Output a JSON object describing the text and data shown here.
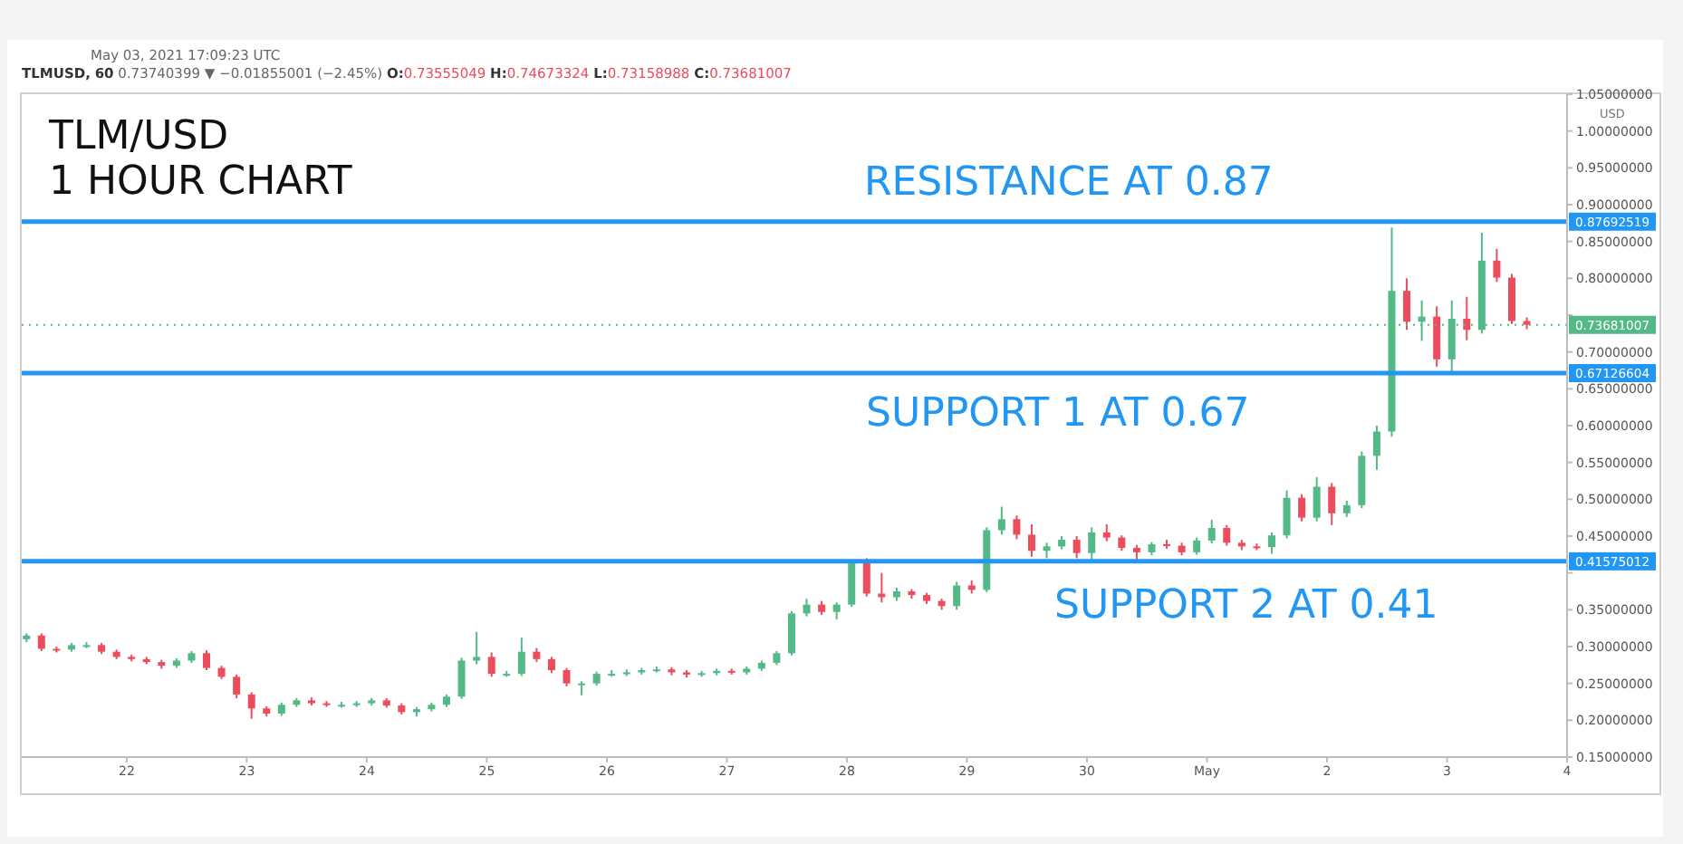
{
  "chart_data": {
    "type": "candlestick",
    "title": "TLM/USD",
    "subtitle": "1 HOUR CHART",
    "ylabel": "USD",
    "annotations": [
      "May 03, 2021 17:09:23 UTC",
      "TLMUSD, 60 0.73740399 ▼ −0.01855001 (−2.45%) O:0.73555049 H:0.74673324 L:0.73158988 C:0.73681007",
      "0.87692519",
      "0.67126604",
      "0.41575012",
      "0.73681007"
    ],
    "x": [
      "2021-04-21T04:00",
      "2021-04-21T07:00",
      "2021-04-21T10:00",
      "2021-04-21T13:00",
      "2021-04-21T16:00",
      "2021-04-21T19:00",
      "2021-04-21T22:00",
      "2021-04-22T01:00",
      "2021-04-22T04:00",
      "2021-04-22T07:00",
      "2021-04-22T10:00",
      "2021-04-22T13:00",
      "2021-04-22T16:00",
      "2021-04-22T19:00",
      "2021-04-22T22:00",
      "2021-04-23T01:00",
      "2021-04-23T04:00",
      "2021-04-23T07:00",
      "2021-04-23T10:00",
      "2021-04-23T13:00",
      "2021-04-23T16:00",
      "2021-04-23T19:00",
      "2021-04-23T22:00",
      "2021-04-24T01:00",
      "2021-04-24T04:00",
      "2021-04-24T07:00",
      "2021-04-24T10:00",
      "2021-04-24T13:00",
      "2021-04-24T16:00",
      "2021-04-24T19:00",
      "2021-04-24T22:00",
      "2021-04-25T01:00",
      "2021-04-25T04:00",
      "2021-04-25T07:00",
      "2021-04-25T10:00",
      "2021-04-25T13:00",
      "2021-04-25T16:00",
      "2021-04-25T19:00",
      "2021-04-25T22:00",
      "2021-04-26T01:00",
      "2021-04-26T04:00",
      "2021-04-26T07:00",
      "2021-04-26T10:00",
      "2021-04-26T13:00",
      "2021-04-26T16:00",
      "2021-04-26T19:00",
      "2021-04-26T22:00",
      "2021-04-27T01:00",
      "2021-04-27T04:00",
      "2021-04-27T07:00",
      "2021-04-27T10:00",
      "2021-04-27T13:00",
      "2021-04-27T16:00",
      "2021-04-27T19:00",
      "2021-04-27T22:00",
      "2021-04-28T01:00",
      "2021-04-28T04:00",
      "2021-04-28T07:00",
      "2021-04-28T10:00",
      "2021-04-28T13:00",
      "2021-04-28T16:00",
      "2021-04-28T19:00",
      "2021-04-28T22:00",
      "2021-04-29T01:00",
      "2021-04-29T04:00",
      "2021-04-29T07:00",
      "2021-04-29T10:00",
      "2021-04-29T13:00",
      "2021-04-29T16:00",
      "2021-04-29T19:00",
      "2021-04-29T22:00",
      "2021-04-30T01:00",
      "2021-04-30T04:00",
      "2021-04-30T07:00",
      "2021-04-30T10:00",
      "2021-04-30T13:00",
      "2021-04-30T16:00",
      "2021-04-30T19:00",
      "2021-04-30T22:00",
      "2021-05-01T01:00",
      "2021-05-01T04:00",
      "2021-05-01T07:00",
      "2021-05-01T10:00",
      "2021-05-01T13:00",
      "2021-05-01T16:00",
      "2021-05-01T19:00",
      "2021-05-01T22:00",
      "2021-05-02T01:00",
      "2021-05-02T04:00",
      "2021-05-02T07:00",
      "2021-05-02T10:00",
      "2021-05-02T13:00",
      "2021-05-02T16:00",
      "2021-05-02T19:00",
      "2021-05-02T22:00",
      "2021-05-03T01:00",
      "2021-05-03T04:00",
      "2021-05-03T07:00",
      "2021-05-03T10:00",
      "2021-05-03T13:00",
      "2021-05-03T16:00"
    ],
    "ohlc": [
      [
        0.31,
        0.318,
        0.306,
        0.315
      ],
      [
        0.315,
        0.318,
        0.294,
        0.297
      ],
      [
        0.297,
        0.3,
        0.292,
        0.296
      ],
      [
        0.296,
        0.305,
        0.293,
        0.302
      ],
      [
        0.302,
        0.306,
        0.298,
        0.302
      ],
      [
        0.302,
        0.305,
        0.29,
        0.293
      ],
      [
        0.293,
        0.296,
        0.283,
        0.286
      ],
      [
        0.286,
        0.289,
        0.28,
        0.283
      ],
      [
        0.283,
        0.286,
        0.276,
        0.279
      ],
      [
        0.279,
        0.282,
        0.27,
        0.274
      ],
      [
        0.274,
        0.284,
        0.271,
        0.281
      ],
      [
        0.281,
        0.294,
        0.278,
        0.291
      ],
      [
        0.291,
        0.295,
        0.268,
        0.271
      ],
      [
        0.271,
        0.274,
        0.256,
        0.259
      ],
      [
        0.259,
        0.262,
        0.23,
        0.235
      ],
      [
        0.235,
        0.238,
        0.202,
        0.216
      ],
      [
        0.216,
        0.219,
        0.205,
        0.209
      ],
      [
        0.209,
        0.224,
        0.206,
        0.221
      ],
      [
        0.221,
        0.23,
        0.218,
        0.227
      ],
      [
        0.227,
        0.231,
        0.22,
        0.223
      ],
      [
        0.223,
        0.226,
        0.218,
        0.221
      ],
      [
        0.221,
        0.225,
        0.217,
        0.221
      ],
      [
        0.221,
        0.226,
        0.218,
        0.223
      ],
      [
        0.223,
        0.23,
        0.22,
        0.227
      ],
      [
        0.227,
        0.23,
        0.217,
        0.22
      ],
      [
        0.22,
        0.223,
        0.208,
        0.211
      ],
      [
        0.211,
        0.218,
        0.205,
        0.215
      ],
      [
        0.215,
        0.224,
        0.212,
        0.221
      ],
      [
        0.221,
        0.235,
        0.218,
        0.232
      ],
      [
        0.232,
        0.285,
        0.229,
        0.281
      ],
      [
        0.281,
        0.32,
        0.276,
        0.286
      ],
      [
        0.286,
        0.292,
        0.259,
        0.263
      ],
      [
        0.263,
        0.267,
        0.259,
        0.263
      ],
      [
        0.263,
        0.312,
        0.26,
        0.293
      ],
      [
        0.293,
        0.298,
        0.279,
        0.283
      ],
      [
        0.283,
        0.286,
        0.264,
        0.268
      ],
      [
        0.268,
        0.271,
        0.246,
        0.25
      ],
      [
        0.25,
        0.253,
        0.234,
        0.25
      ],
      [
        0.25,
        0.266,
        0.247,
        0.263
      ],
      [
        0.263,
        0.268,
        0.259,
        0.263
      ],
      [
        0.263,
        0.269,
        0.26,
        0.265
      ],
      [
        0.265,
        0.271,
        0.262,
        0.268
      ],
      [
        0.268,
        0.273,
        0.265,
        0.269
      ],
      [
        0.269,
        0.272,
        0.261,
        0.265
      ],
      [
        0.265,
        0.268,
        0.258,
        0.262
      ],
      [
        0.262,
        0.267,
        0.259,
        0.264
      ],
      [
        0.264,
        0.27,
        0.261,
        0.267
      ],
      [
        0.267,
        0.27,
        0.262,
        0.265
      ],
      [
        0.265,
        0.273,
        0.262,
        0.27
      ],
      [
        0.27,
        0.281,
        0.267,
        0.278
      ],
      [
        0.278,
        0.294,
        0.275,
        0.291
      ],
      [
        0.291,
        0.348,
        0.288,
        0.345
      ],
      [
        0.345,
        0.365,
        0.341,
        0.357
      ],
      [
        0.357,
        0.362,
        0.343,
        0.347
      ],
      [
        0.347,
        0.36,
        0.337,
        0.357
      ],
      [
        0.357,
        0.418,
        0.354,
        0.415
      ],
      [
        0.415,
        0.42,
        0.368,
        0.372
      ],
      [
        0.372,
        0.4,
        0.36,
        0.367
      ],
      [
        0.367,
        0.38,
        0.362,
        0.375
      ],
      [
        0.375,
        0.378,
        0.365,
        0.37
      ],
      [
        0.37,
        0.373,
        0.358,
        0.362
      ],
      [
        0.362,
        0.365,
        0.35,
        0.355
      ],
      [
        0.355,
        0.388,
        0.35,
        0.383
      ],
      [
        0.383,
        0.39,
        0.372,
        0.377
      ],
      [
        0.377,
        0.462,
        0.374,
        0.458
      ],
      [
        0.458,
        0.49,
        0.452,
        0.473
      ],
      [
        0.473,
        0.478,
        0.446,
        0.452
      ],
      [
        0.452,
        0.466,
        0.422,
        0.43
      ],
      [
        0.43,
        0.441,
        0.42,
        0.436
      ],
      [
        0.436,
        0.45,
        0.432,
        0.445
      ],
      [
        0.445,
        0.45,
        0.42,
        0.427
      ],
      [
        0.427,
        0.462,
        0.418,
        0.455
      ],
      [
        0.455,
        0.466,
        0.443,
        0.448
      ],
      [
        0.448,
        0.451,
        0.43,
        0.434
      ],
      [
        0.434,
        0.438,
        0.418,
        0.428
      ],
      [
        0.428,
        0.442,
        0.424,
        0.439
      ],
      [
        0.439,
        0.445,
        0.433,
        0.437
      ],
      [
        0.437,
        0.441,
        0.424,
        0.428
      ],
      [
        0.428,
        0.448,
        0.425,
        0.444
      ],
      [
        0.444,
        0.472,
        0.44,
        0.461
      ],
      [
        0.461,
        0.465,
        0.437,
        0.441
      ],
      [
        0.441,
        0.445,
        0.431,
        0.436
      ],
      [
        0.436,
        0.44,
        0.431,
        0.435
      ],
      [
        0.435,
        0.455,
        0.426,
        0.451
      ],
      [
        0.451,
        0.512,
        0.447,
        0.502
      ],
      [
        0.502,
        0.507,
        0.47,
        0.475
      ],
      [
        0.475,
        0.53,
        0.47,
        0.517
      ],
      [
        0.517,
        0.522,
        0.465,
        0.481
      ],
      [
        0.481,
        0.498,
        0.476,
        0.492
      ],
      [
        0.492,
        0.565,
        0.488,
        0.559
      ],
      [
        0.559,
        0.6,
        0.54,
        0.592
      ],
      [
        0.592,
        0.869,
        0.585,
        0.783
      ],
      [
        0.783,
        0.8,
        0.73,
        0.741
      ],
      [
        0.741,
        0.77,
        0.715,
        0.748
      ],
      [
        0.748,
        0.762,
        0.68,
        0.69
      ],
      [
        0.69,
        0.77,
        0.672,
        0.745
      ],
      [
        0.745,
        0.775,
        0.716,
        0.73
      ],
      [
        0.73,
        0.862,
        0.725,
        0.824
      ],
      [
        0.824,
        0.84,
        0.795,
        0.801
      ],
      [
        0.801,
        0.806,
        0.738,
        0.742
      ],
      [
        0.742,
        0.747,
        0.731,
        0.737
      ]
    ],
    "colors": [
      "#53b987",
      "#eb4d5c",
      "#eb4d5c",
      "#53b987",
      "#53b987",
      "#eb4d5c",
      "#eb4d5c",
      "#eb4d5c",
      "#eb4d5c",
      "#eb4d5c",
      "#53b987",
      "#53b987",
      "#eb4d5c",
      "#eb4d5c",
      "#eb4d5c",
      "#eb4d5c",
      "#eb4d5c",
      "#53b987",
      "#53b987",
      "#eb4d5c",
      "#eb4d5c",
      "#53b987",
      "#53b987",
      "#53b987",
      "#eb4d5c",
      "#eb4d5c",
      "#53b987",
      "#53b987",
      "#53b987",
      "#53b987",
      "#53b987",
      "#eb4d5c",
      "#53b987",
      "#53b987",
      "#eb4d5c",
      "#eb4d5c",
      "#eb4d5c",
      "#53b987",
      "#53b987",
      "#53b987",
      "#53b987",
      "#53b987",
      "#53b987",
      "#eb4d5c",
      "#eb4d5c",
      "#53b987",
      "#53b987",
      "#eb4d5c",
      "#53b987",
      "#53b987",
      "#53b987",
      "#53b987",
      "#53b987",
      "#eb4d5c",
      "#53b987",
      "#53b987",
      "#eb4d5c",
      "#eb4d5c",
      "#53b987",
      "#eb4d5c",
      "#eb4d5c",
      "#eb4d5c",
      "#53b987",
      "#eb4d5c",
      "#53b987",
      "#53b987",
      "#eb4d5c",
      "#eb4d5c",
      "#53b987",
      "#53b987",
      "#eb4d5c",
      "#53b987",
      "#eb4d5c",
      "#eb4d5c",
      "#eb4d5c",
      "#53b987",
      "#eb4d5c",
      "#eb4d5c",
      "#53b987",
      "#53b987",
      "#eb4d5c",
      "#eb4d5c",
      "#eb4d5c",
      "#53b987",
      "#53b987",
      "#eb4d5c",
      "#53b987",
      "#eb4d5c",
      "#53b987",
      "#53b987",
      "#53b987",
      "#53b987",
      "#eb4d5c",
      "#53b987",
      "#eb4d5c",
      "#53b987",
      "#eb4d5c",
      "#53b987",
      "#eb4d5c",
      "#eb4d5c",
      "#eb4d5c"
    ],
    "xlim": [
      "2021-04-21T03:00",
      "2021-05-04T00:00"
    ],
    "xticks": [
      {
        "value": "2021-04-22",
        "label": "22"
      },
      {
        "value": "2021-04-23",
        "label": "23"
      },
      {
        "value": "2021-04-24",
        "label": "24"
      },
      {
        "value": "2021-04-25",
        "label": "25"
      },
      {
        "value": "2021-04-26",
        "label": "26"
      },
      {
        "value": "2021-04-27",
        "label": "27"
      },
      {
        "value": "2021-04-28",
        "label": "28"
      },
      {
        "value": "2021-04-29",
        "label": "29"
      },
      {
        "value": "2021-04-30",
        "label": "30"
      },
      {
        "value": "2021-05-01",
        "label": "May"
      },
      {
        "value": "2021-05-02",
        "label": "2"
      },
      {
        "value": "2021-05-03",
        "label": "3"
      },
      {
        "value": "2021-05-04",
        "label": "4"
      }
    ],
    "ylim": [
      0.15,
      1.05
    ],
    "yticks": [
      {
        "value": 0.15,
        "label": "0.15000000"
      },
      {
        "value": 0.2,
        "label": "0.20000000"
      },
      {
        "value": 0.25,
        "label": "0.25000000"
      },
      {
        "value": 0.3,
        "label": "0.30000000"
      },
      {
        "value": 0.35,
        "label": "0.35000000"
      },
      {
        "value": 0.4,
        "label": null
      },
      {
        "value": 0.45,
        "label": "0.45000000"
      },
      {
        "value": 0.5,
        "label": "0.50000000"
      },
      {
        "value": 0.55,
        "label": "0.55000000"
      },
      {
        "value": 0.6,
        "label": "0.60000000"
      },
      {
        "value": 0.65,
        "label": "0.65000000"
      },
      {
        "value": 0.7,
        "label": "0.70000000"
      },
      {
        "value": 0.75,
        "label": null
      },
      {
        "value": 0.8,
        "label": "0.80000000"
      },
      {
        "value": 0.85,
        "label": "0.85000000"
      },
      {
        "value": 0.9,
        "label": "0.90000000"
      },
      {
        "value": 0.95,
        "label": "0.95000000"
      },
      {
        "value": 1.0,
        "label": "1.00000000"
      },
      {
        "value": 1.05,
        "label": "1.05000000"
      }
    ],
    "ref_lines": [
      {
        "axis": "y",
        "value": 0.87692519,
        "label": "RESISTANCE AT 0.87",
        "color": "#2196f3",
        "line_style": "solid"
      },
      {
        "axis": "y",
        "value": 0.67126604,
        "label": "SUPPORT 1 AT 0.67",
        "color": "#2196f3",
        "line_style": "solid"
      },
      {
        "axis": "y",
        "value": 0.41575012,
        "label": "SUPPORT 2 AT 0.41",
        "color": "#2196f3",
        "line_style": "solid"
      },
      {
        "axis": "y",
        "value": 0.73681007,
        "color": "#53b987",
        "line_style": "dotted"
      }
    ]
  }
}
